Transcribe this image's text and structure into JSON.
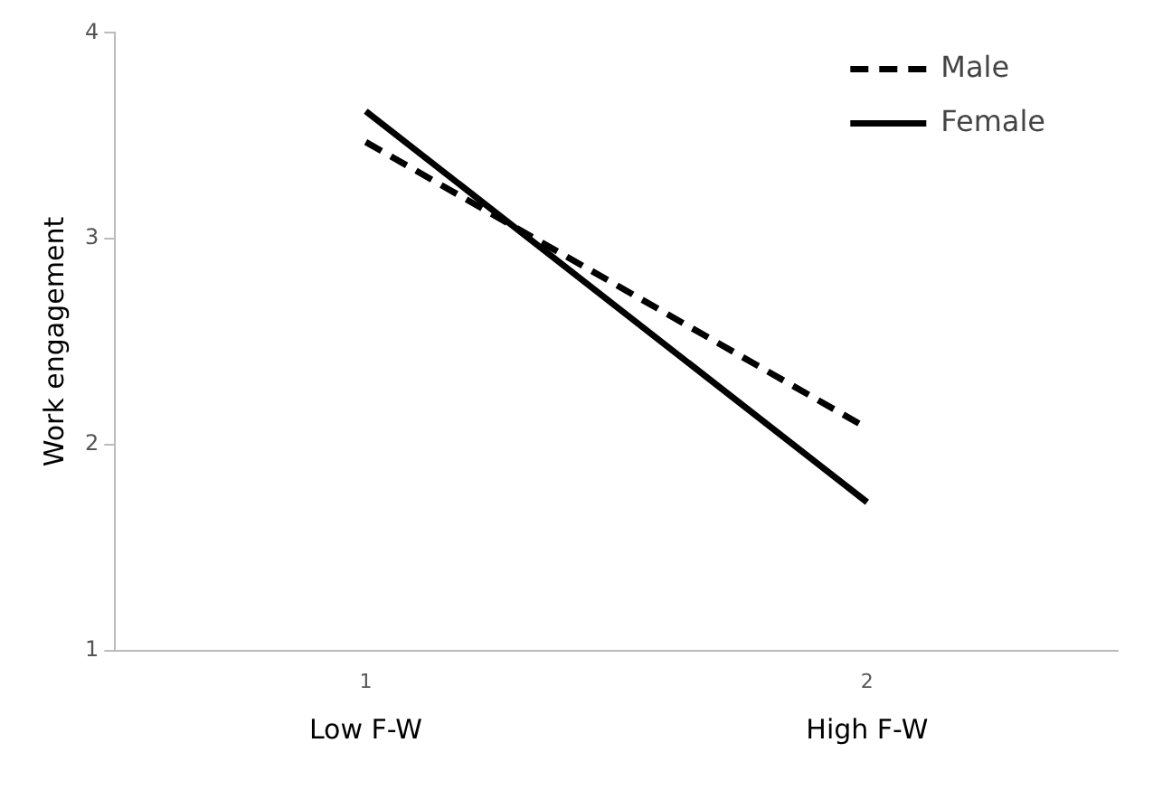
{
  "chart_data": {
    "type": "line",
    "ylabel": "Work engagement",
    "categories": [
      "1",
      "2"
    ],
    "series": [
      {
        "name": "Male",
        "color": "#000000",
        "values": [
          3.47,
          2.08
        ],
        "line_style": "dashed"
      },
      {
        "name": "Female",
        "color": "#000000",
        "values": [
          3.62,
          1.72
        ],
        "line_style": "solid"
      }
    ],
    "ylim": [
      1,
      4
    ],
    "yticks": [
      1,
      2,
      3,
      4
    ],
    "grid": false,
    "legend": "top right",
    "marker": "none",
    "annotations": [
      "Low F-W",
      "High F-W"
    ]
  }
}
